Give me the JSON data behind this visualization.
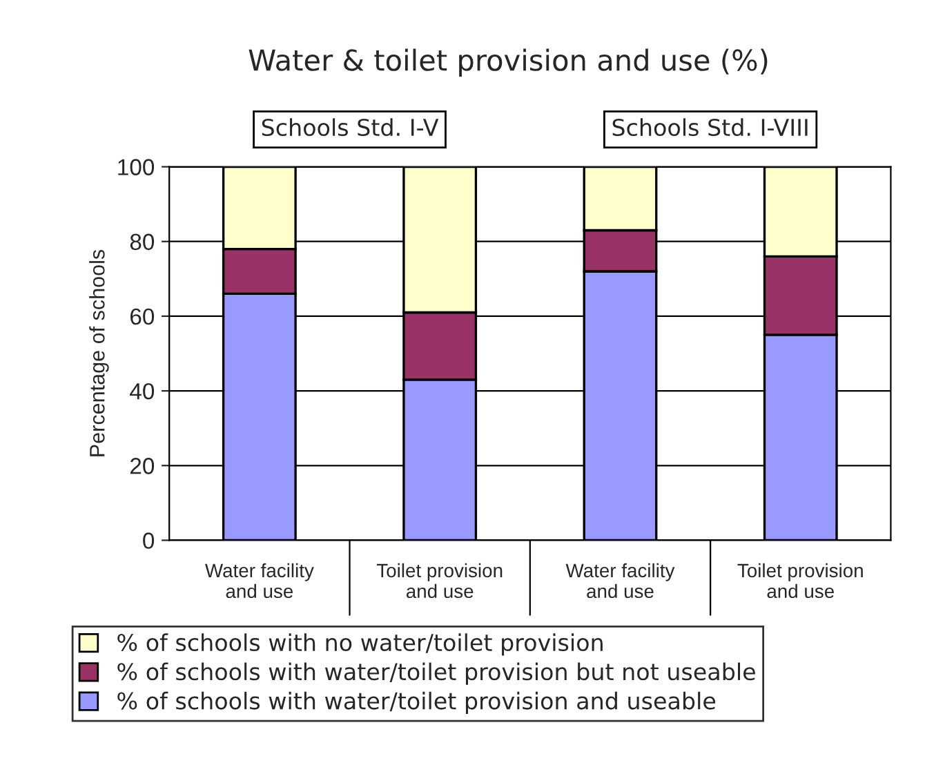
{
  "chart_data": {
    "type": "bar",
    "title": "Water & toilet provision and use (%)",
    "ylabel": "Percentage of schools",
    "categories": [
      "Water facility\nand use",
      "Toilet provision\nand use",
      "Water facility\nand use",
      "Toilet provision\nand use"
    ],
    "stacked": true,
    "series": [
      {
        "name": "% of schools with water/toilet provision and useable",
        "color": "#9999ff",
        "values": [
          66,
          43,
          72,
          55
        ]
      },
      {
        "name": "% of schools with water/toilet provision but not useable",
        "color": "#993366",
        "values": [
          12,
          18,
          11,
          21
        ]
      },
      {
        "name": "% of schools with no water/toilet provision",
        "color": "#ffffcc",
        "values": [
          22,
          39,
          17,
          24
        ]
      }
    ],
    "ylim": [
      0,
      100
    ],
    "yticks": [
      0,
      20,
      40,
      60,
      80,
      100
    ],
    "grid": "y",
    "legend": "bottom",
    "annotations": [
      "Schools Std. I-V",
      "Schools Std. I-VIII"
    ]
  }
}
